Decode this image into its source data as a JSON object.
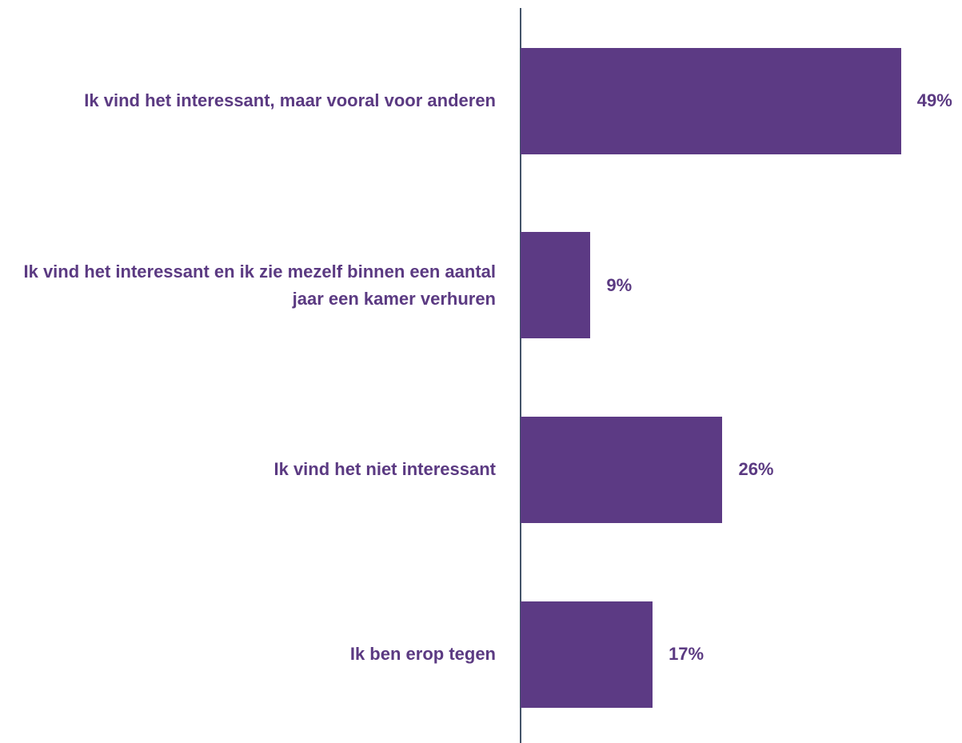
{
  "chart_data": {
    "type": "bar",
    "orientation": "horizontal",
    "categories": [
      "Ik vind het interessant, maar vooral voor anderen",
      "Ik vind het interessant en ik zie mezelf binnen een aantal jaar een kamer verhuren",
      "Ik vind het niet interessant",
      "Ik ben erop tegen"
    ],
    "values": [
      49,
      9,
      26,
      17
    ],
    "value_labels": [
      "49%",
      "9%",
      "26%",
      "17%"
    ],
    "color": "#5c3a84"
  }
}
